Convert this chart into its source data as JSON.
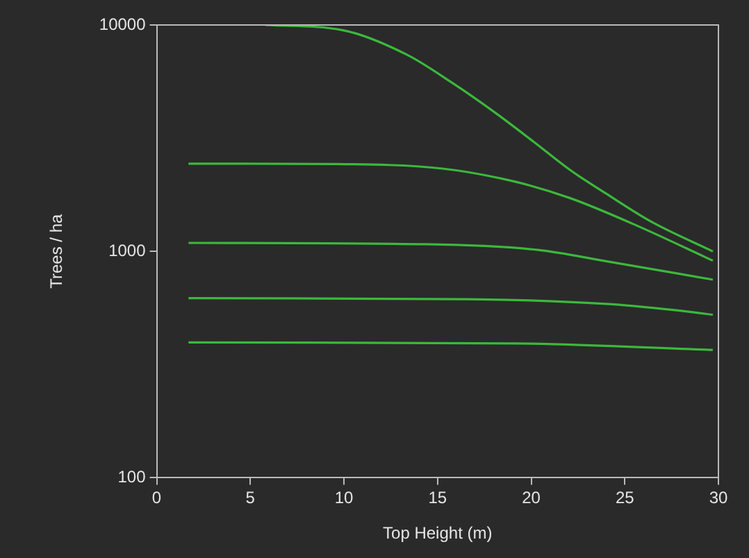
{
  "chart_data": {
    "type": "line",
    "xlabel": "Top Height (m)",
    "ylabel": "Trees / ha",
    "log": "y",
    "grid": false,
    "legend": false,
    "marker": "none",
    "line_style": "solid",
    "xlim": [
      0,
      30
    ],
    "xticks": [
      0,
      5,
      10,
      15,
      20,
      25,
      30
    ],
    "ylim": [
      100,
      10000
    ],
    "yticks": [
      100,
      1000,
      10000
    ],
    "series": [
      {
        "color": "#3cb83c",
        "x": [
          5.8,
          9.95,
          13.35,
          15.77,
          17.95,
          20.13,
          22.07,
          24.0,
          26.43,
          29.7
        ],
        "values": [
          10000,
          9480,
          7400,
          5560,
          4170,
          3050,
          2290,
          1800,
          1350,
          1000
        ]
      },
      {
        "color": "#3cb83c",
        "x": [
          1.7,
          9.5,
          15.28,
          19.16,
          22.07,
          25.46,
          29.7
        ],
        "values": [
          2440,
          2430,
          2320,
          2030,
          1720,
          1320,
          910
        ]
      },
      {
        "color": "#3cb83c",
        "x": [
          1.7,
          14.37,
          20.37,
          24.0,
          29.7
        ],
        "values": [
          1090,
          1075,
          1015,
          905,
          750
        ]
      },
      {
        "color": "#3cb83c",
        "x": [
          1.7,
          16.7,
          24.0,
          27.6,
          29.7
        ],
        "values": [
          621,
          615,
          586,
          551,
          525
        ]
      },
      {
        "color": "#3cb83c",
        "x": [
          1.7,
          19.16,
          29.7
        ],
        "values": [
          396,
          392,
          367
        ]
      }
    ]
  }
}
